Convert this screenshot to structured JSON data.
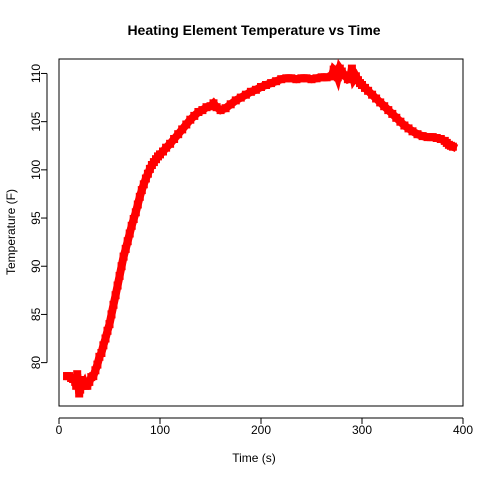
{
  "chart_data": {
    "type": "line",
    "title": "Heating Element Temperature vs Time",
    "xlabel": "Time (s)",
    "ylabel": "Temperature (F)",
    "xlim": [
      0,
      400
    ],
    "ylim": [
      75.5,
      111.5
    ],
    "xticks": [
      0,
      100,
      200,
      300,
      400
    ],
    "yticks": [
      80,
      85,
      90,
      95,
      100,
      105,
      110
    ],
    "grid": false,
    "series": [
      {
        "color": "#ff0000",
        "x": [
          8,
          10,
          12,
          14,
          16,
          17,
          18,
          19,
          20,
          21,
          22,
          23,
          24,
          25,
          26,
          28,
          30,
          32,
          34,
          36,
          38,
          40,
          42,
          44,
          46,
          48,
          50,
          52,
          54,
          56,
          58,
          60,
          62,
          64,
          66,
          68,
          70,
          72,
          74,
          76,
          78,
          80,
          82,
          84,
          86,
          88,
          90,
          92,
          94,
          96,
          98,
          100,
          103,
          106,
          110,
          114,
          118,
          122,
          126,
          130,
          134,
          138,
          142,
          146,
          150,
          153,
          156,
          160,
          165,
          170,
          175,
          180,
          185,
          190,
          195,
          200,
          205,
          210,
          215,
          220,
          225,
          230,
          235,
          240,
          245,
          250,
          255,
          260,
          265,
          270,
          272,
          274,
          276,
          278,
          280,
          283,
          286,
          288,
          290,
          292,
          294,
          296,
          298,
          300,
          303,
          306,
          310,
          314,
          318,
          322,
          326,
          330,
          334,
          338,
          342,
          346,
          350,
          355,
          360,
          365,
          370,
          374,
          378,
          382,
          384,
          386,
          388,
          390
        ],
        "y": [
          78.6,
          78.6,
          78.4,
          78.3,
          78.0,
          77.6,
          78.8,
          77.9,
          76.8,
          77.2,
          78.2,
          77.6,
          77.7,
          77.9,
          77.6,
          77.6,
          78.0,
          78.5,
          78.6,
          79.2,
          79.8,
          80.6,
          81.0,
          81.8,
          82.5,
          83.3,
          84.0,
          85.0,
          86.0,
          87.0,
          88.0,
          89.0,
          90.0,
          91.0,
          91.8,
          92.6,
          93.4,
          94.2,
          94.9,
          95.6,
          96.4,
          97.2,
          97.9,
          98.5,
          99.1,
          99.6,
          100.1,
          100.5,
          100.8,
          101.1,
          101.4,
          101.6,
          101.9,
          102.3,
          102.7,
          103.2,
          103.7,
          104.2,
          104.7,
          105.2,
          105.6,
          106.0,
          106.2,
          106.5,
          106.6,
          106.9,
          106.5,
          106.2,
          106.4,
          106.8,
          107.2,
          107.5,
          107.8,
          108.1,
          108.3,
          108.6,
          108.8,
          109.0,
          109.2,
          109.4,
          109.5,
          109.5,
          109.4,
          109.5,
          109.5,
          109.4,
          109.5,
          109.6,
          109.6,
          109.7,
          110.4,
          110.2,
          109.6,
          110.5,
          110.2,
          109.8,
          109.4,
          109.5,
          110.5,
          109.4,
          109.7,
          109.3,
          109.0,
          108.8,
          108.5,
          108.2,
          107.8,
          107.4,
          107.0,
          106.6,
          106.2,
          105.8,
          105.4,
          105.0,
          104.6,
          104.3,
          104.0,
          103.7,
          103.5,
          103.4,
          103.4,
          103.3,
          103.2,
          103.0,
          102.8,
          102.6,
          102.5,
          102.4
        ]
      }
    ]
  }
}
